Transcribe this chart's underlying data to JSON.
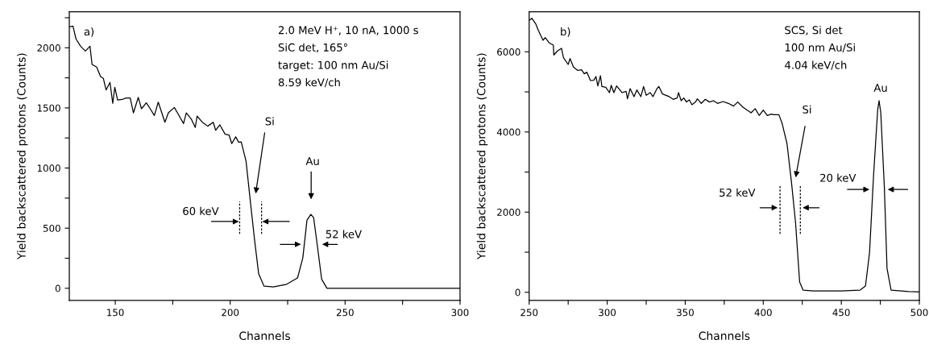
{
  "chart_data": [
    {
      "type": "line",
      "xlabel": "Channels",
      "ylabel": "Yield backscattered protons (Counts)",
      "xlim": [
        130,
        300
      ],
      "ylim": [
        -100,
        2300
      ],
      "xticks": [
        150,
        {
          "value": 175,
          "label": null
        },
        200,
        {
          "value": 225,
          "label": null
        },
        250,
        {
          "value": 275,
          "label": null
        },
        300
      ],
      "yticks": [
        0,
        {
          "value": 250,
          "label": null
        },
        500,
        {
          "value": 750,
          "label": null
        },
        1000,
        {
          "value": 1250,
          "label": null
        },
        1500,
        {
          "value": 1750,
          "label": null
        },
        2000,
        {
          "value": 2250,
          "label": null
        }
      ],
      "x": [
        130,
        131.6,
        132.9,
        134.9,
        137,
        139,
        139.9,
        141.9,
        143.6,
        144.8,
        146,
        147.7,
        148.9,
        149.8,
        151,
        153,
        154.7,
        156.5,
        157.9,
        160,
        161.4,
        163.5,
        165.2,
        167,
        168.7,
        171.6,
        173.1,
        175.7,
        177.4,
        179.7,
        180.9,
        183.2,
        184.8,
        185.6,
        187.9,
        190.2,
        192.6,
        193.7,
        195.5,
        197.8,
        199.5,
        200.7,
        202.4,
        203.7,
        204.8,
        206.9,
        208.9,
        210.7,
        212.4,
        214.7,
        218.8,
        224.6,
        229.3,
        231.6,
        233.4,
        235.1,
        236.3,
        238,
        239.8,
        242.1,
        260,
        280,
        300
      ],
      "series": [
        {
          "color": "#000000",
          "values": [
            2174,
            2181,
            2074,
            2013,
            1973,
            2013,
            1861,
            1839,
            1761,
            1746,
            1649,
            1712,
            1538,
            1672,
            1566,
            1570,
            1582,
            1582,
            1459,
            1587,
            1493,
            1542,
            1493,
            1437,
            1548,
            1381,
            1459,
            1504,
            1448,
            1370,
            1459,
            1403,
            1337,
            1431,
            1381,
            1348,
            1381,
            1314,
            1359,
            1281,
            1275,
            1203,
            1259,
            1214,
            1218,
            1057,
            700,
            387,
            119,
            19,
            12,
            34,
            86,
            253,
            566,
            615,
            588,
            342,
            75,
            0,
            0,
            0,
            0
          ]
        }
      ],
      "annotations": [
        "a)",
        "2.0 MeV H⁺, 10 nA, 1000 s",
        "SiC det, 165°",
        "target: 100 nm Au/Si",
        "8.59 keV/ch",
        "Si",
        "Au",
        "60 keV",
        "52 keV"
      ]
    },
    {
      "type": "line",
      "xlabel": "Channels",
      "ylabel": "Yield backscattered protons (Counts)",
      "xlim": [
        250,
        500
      ],
      "ylim": [
        -200,
        7000
      ],
      "xticks": [
        250,
        {
          "value": 275,
          "label": null
        },
        300,
        {
          "value": 325,
          "label": null
        },
        350,
        {
          "value": 375,
          "label": null
        },
        400,
        {
          "value": 425,
          "label": null
        },
        450,
        {
          "value": 475,
          "label": null
        },
        500
      ],
      "yticks": [
        0,
        {
          "value": 1000,
          "label": null
        },
        2000,
        {
          "value": 3000,
          "label": null
        },
        4000,
        {
          "value": 5000,
          "label": null
        },
        6000
      ],
      "x": [
        250.3,
        251.7,
        254.3,
        256,
        258.9,
        260.3,
        262.9,
        265.5,
        265.8,
        268.1,
        270.7,
        272,
        275,
        276.2,
        278.4,
        281,
        283.6,
        285.3,
        287,
        289.3,
        291.4,
        292.8,
        294,
        295.7,
        296.6,
        299.1,
        301.4,
        302.6,
        304.3,
        306,
        309.5,
        312.1,
        313,
        314.7,
        317.2,
        319,
        321.6,
        323.3,
        325,
        327.6,
        329.3,
        331.9,
        333.1,
        335.4,
        339.7,
        342.3,
        344.8,
        345.7,
        347.4,
        349.1,
        350.8,
        352.6,
        354.3,
        356.6,
        357.8,
        360.3,
        362.9,
        365.5,
        368.1,
        370.7,
        374.2,
        377.6,
        381,
        383.6,
        387.1,
        389.7,
        392.2,
        394.8,
        397.4,
        400,
        402.6,
        405.2,
        406.9,
        410,
        412.1,
        415.2,
        418.1,
        420.7,
        423.3,
        425.5,
        432.2,
        450,
        462.1,
        465.5,
        468.1,
        470.7,
        473.3,
        474.2,
        475.3,
        477.6,
        479.3,
        481.9,
        493,
        500
      ],
      "series": [
        {
          "color": "#000000",
          "values": [
            6790,
            6836,
            6690,
            6523,
            6287,
            6354,
            6221,
            6167,
            5920,
            6020,
            6087,
            5851,
            5684,
            5831,
            5618,
            5538,
            5550,
            5450,
            5490,
            5282,
            5290,
            5383,
            5148,
            5403,
            5135,
            5115,
            4981,
            5162,
            4981,
            5148,
            4981,
            5014,
            4826,
            5081,
            4881,
            5048,
            4881,
            5135,
            4914,
            4981,
            4881,
            5081,
            5135,
            4948,
            4881,
            4814,
            4848,
            4981,
            4780,
            4848,
            4747,
            4800,
            4680,
            4747,
            4826,
            4713,
            4814,
            4747,
            4780,
            4713,
            4760,
            4713,
            4646,
            4747,
            4613,
            4545,
            4478,
            4580,
            4412,
            4545,
            4412,
            4445,
            4430,
            4430,
            4211,
            3709,
            2736,
            1731,
            257,
            56,
            36,
            36,
            56,
            157,
            995,
            2937,
            4545,
            4780,
            4478,
            2603,
            593,
            56,
            20,
            10
          ]
        }
      ],
      "annotations": [
        "b)",
        "SCS, Si det",
        "100 nm Au/Si",
        "4.04 keV/ch",
        "Si",
        "Au",
        "52 keV",
        "20 keV"
      ]
    }
  ]
}
